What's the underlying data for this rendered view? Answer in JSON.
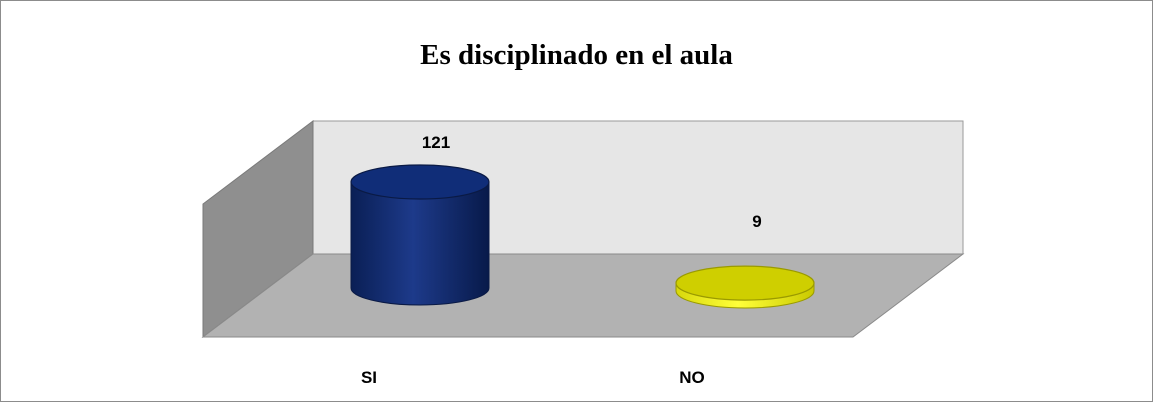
{
  "chart_data": {
    "type": "bar",
    "title": "Es disciplinado en el aula",
    "categories": [
      "SI",
      "NO"
    ],
    "values": [
      121,
      9
    ],
    "series": [
      {
        "values": [
          121,
          9
        ]
      }
    ],
    "colors": [
      "#0f2a6b",
      "#e6e615"
    ],
    "xlabel": "",
    "ylabel": "",
    "grid": false,
    "legend": "none",
    "data_labels": [
      "121",
      "9"
    ]
  }
}
